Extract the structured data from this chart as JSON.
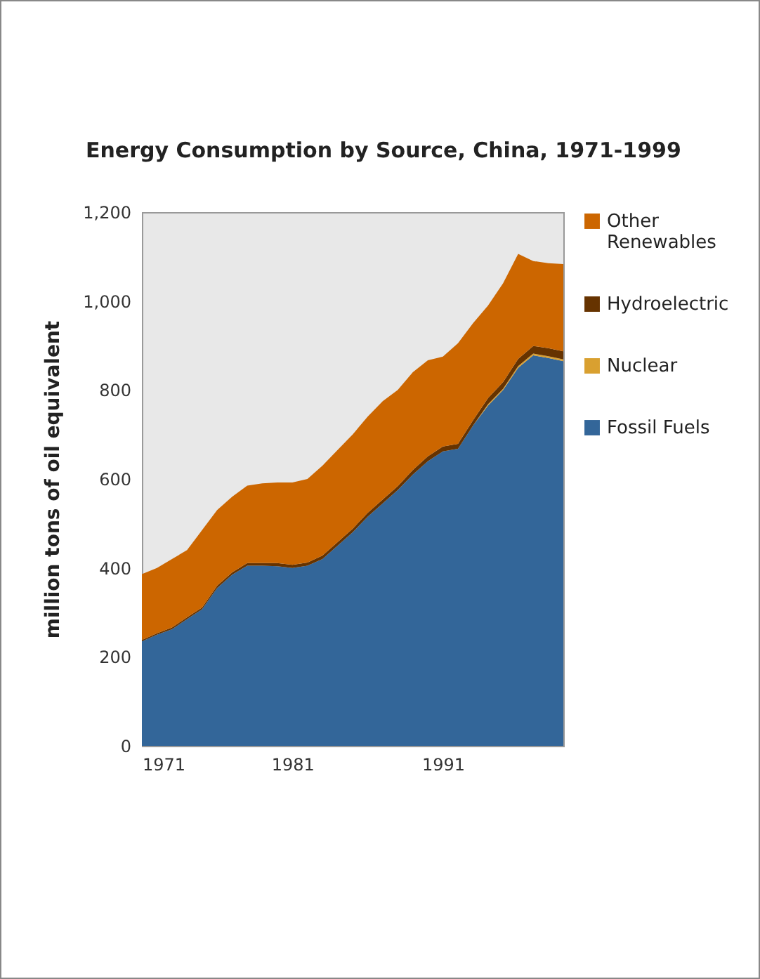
{
  "chart_data": {
    "type": "area",
    "title": "Energy Consumption by Source, China, 1971-1999",
    "ylabel": "million tons of oil equivalent",
    "x": [
      1971,
      1972,
      1973,
      1974,
      1975,
      1976,
      1977,
      1978,
      1979,
      1980,
      1981,
      1982,
      1983,
      1984,
      1985,
      1986,
      1987,
      1988,
      1989,
      1990,
      1991,
      1992,
      1993,
      1994,
      1995,
      1996,
      1997,
      1998,
      1999
    ],
    "stacked": true,
    "series": [
      {
        "name": "Fossil Fuels",
        "color": "#336699",
        "values": [
          235,
          250,
          262,
          285,
          307,
          355,
          385,
          405,
          405,
          404,
          400,
          405,
          420,
          450,
          480,
          515,
          545,
          575,
          610,
          640,
          662,
          668,
          720,
          765,
          800,
          850,
          878,
          872,
          865
        ]
      },
      {
        "name": "Nuclear",
        "color": "#d9a030",
        "values": [
          0,
          0,
          0,
          0,
          0,
          0,
          0,
          0,
          0,
          0,
          0,
          0,
          0,
          0,
          0,
          0,
          0,
          0,
          0,
          0,
          0,
          0,
          0,
          3,
          3,
          4,
          4,
          4,
          4
        ]
      },
      {
        "name": "Hydroelectric",
        "color": "#663300",
        "values": [
          3,
          3,
          4,
          4,
          4,
          5,
          5,
          6,
          6,
          7,
          7,
          7,
          8,
          8,
          8,
          9,
          9,
          9,
          10,
          11,
          11,
          11,
          12,
          14,
          15,
          16,
          17,
          18,
          18
        ]
      },
      {
        "name": "Other Renewables",
        "color": "#cc6600",
        "values": [
          148,
          147,
          154,
          151,
          174,
          170,
          170,
          174,
          179,
          181,
          185,
          188,
          202,
          207,
          212,
          216,
          221,
          216,
          220,
          216,
          202,
          226,
          218,
          208,
          222,
          236,
          191,
          191,
          196
        ]
      }
    ],
    "xlim": [
      1971,
      1999
    ],
    "xticks": [
      1971,
      1981,
      1991
    ],
    "ylim": [
      0,
      1200
    ],
    "yticks": [
      {
        "value": 0,
        "label": "0"
      },
      {
        "value": 200,
        "label": "200"
      },
      {
        "value": 400,
        "label": "400"
      },
      {
        "value": 600,
        "label": "600"
      },
      {
        "value": 800,
        "label": "800"
      },
      {
        "value": 1000,
        "label": "1,000"
      },
      {
        "value": 1200,
        "label": "1,200"
      }
    ],
    "legend": "right"
  }
}
